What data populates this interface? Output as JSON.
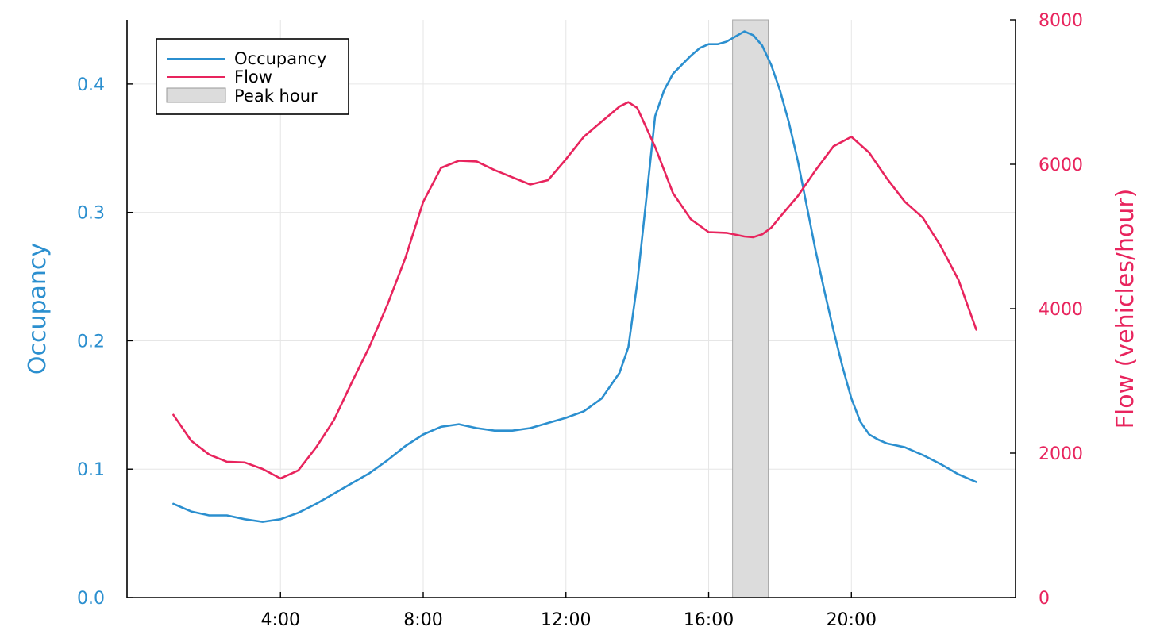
{
  "chart_data": {
    "type": "line",
    "xlabel": "",
    "x_tick_labels": [
      "4:00",
      "8:00",
      "12:00",
      "16:00",
      "20:00"
    ],
    "x_tick_hours": [
      4,
      8,
      12,
      16,
      20
    ],
    "xlim": [
      -0.3,
      24.6
    ],
    "grid": true,
    "legend_position": "top-left",
    "legend": [
      "Occupancy",
      "Flow",
      "Peak hour"
    ],
    "peak_hour": {
      "name": "Peak hour",
      "start": 16.67,
      "end": 17.67,
      "color": "#dcdcdc"
    },
    "left_axis": {
      "label": "Occupancy",
      "color": "#2b8fcf",
      "ylim": [
        0,
        0.45
      ],
      "ticks": [
        0,
        0.1,
        0.2,
        0.3,
        0.4
      ],
      "tick_labels": [
        "0.0",
        "0.1",
        "0.2",
        "0.3",
        "0.4"
      ]
    },
    "right_axis": {
      "label": "Flow (vehicles/hour)",
      "color": "#e8245d",
      "ylim": [
        0,
        8000
      ],
      "ticks": [
        0,
        2000,
        4000,
        6000,
        8000
      ],
      "tick_labels": [
        "0",
        "2000",
        "4000",
        "6000",
        "8000"
      ]
    },
    "series": [
      {
        "name": "Occupancy",
        "axis": "left",
        "color": "#2b8fcf",
        "x": [
          1,
          1.5,
          2,
          2.5,
          3,
          3.5,
          4,
          4.5,
          5,
          5.5,
          6,
          6.5,
          7,
          7.5,
          8,
          8.5,
          9,
          9.5,
          10,
          10.5,
          11,
          11.5,
          12,
          12.5,
          13,
          13.5,
          13.75,
          14,
          14.25,
          14.5,
          14.75,
          15,
          15.25,
          15.5,
          15.75,
          16,
          16.25,
          16.5,
          16.75,
          17,
          17.25,
          17.5,
          17.75,
          18,
          18.25,
          18.5,
          18.75,
          19,
          19.25,
          19.5,
          19.75,
          20,
          20.25,
          20.5,
          20.75,
          21,
          21.5,
          22,
          22.5,
          23,
          23.5
        ],
        "y": [
          0.073,
          0.067,
          0.064,
          0.064,
          0.061,
          0.059,
          0.061,
          0.066,
          0.073,
          0.081,
          0.089,
          0.097,
          0.107,
          0.118,
          0.127,
          0.133,
          0.135,
          0.132,
          0.13,
          0.13,
          0.132,
          0.136,
          0.14,
          0.145,
          0.155,
          0.175,
          0.195,
          0.245,
          0.31,
          0.375,
          0.395,
          0.408,
          0.415,
          0.422,
          0.428,
          0.431,
          0.431,
          0.433,
          0.437,
          0.441,
          0.438,
          0.43,
          0.415,
          0.395,
          0.37,
          0.34,
          0.305,
          0.27,
          0.238,
          0.208,
          0.18,
          0.155,
          0.137,
          0.127,
          0.123,
          0.12,
          0.117,
          0.111,
          0.104,
          0.096,
          0.09
        ]
      },
      {
        "name": "Flow",
        "axis": "right",
        "color": "#e8245d",
        "x": [
          1,
          1.5,
          2,
          2.5,
          3,
          3.5,
          4,
          4.5,
          5,
          5.5,
          6,
          6.5,
          7,
          7.5,
          8,
          8.5,
          9,
          9.5,
          10,
          10.5,
          11,
          11.5,
          12,
          12.5,
          13,
          13.5,
          13.75,
          14,
          14.5,
          15,
          15.5,
          16,
          16.5,
          17,
          17.25,
          17.5,
          17.75,
          18,
          18.5,
          19,
          19.5,
          20,
          20.5,
          21,
          21.5,
          22,
          22.5,
          23,
          23.5
        ],
        "y": [
          2530,
          2170,
          1980,
          1880,
          1870,
          1780,
          1650,
          1760,
          2080,
          2460,
          2980,
          3480,
          4060,
          4700,
          5480,
          5950,
          6050,
          6040,
          5920,
          5820,
          5720,
          5780,
          6070,
          6380,
          6590,
          6800,
          6860,
          6780,
          6240,
          5600,
          5240,
          5060,
          5050,
          5000,
          4990,
          5030,
          5120,
          5270,
          5560,
          5920,
          6250,
          6380,
          6160,
          5800,
          5480,
          5260,
          4870,
          4400,
          3710
        ]
      }
    ]
  }
}
